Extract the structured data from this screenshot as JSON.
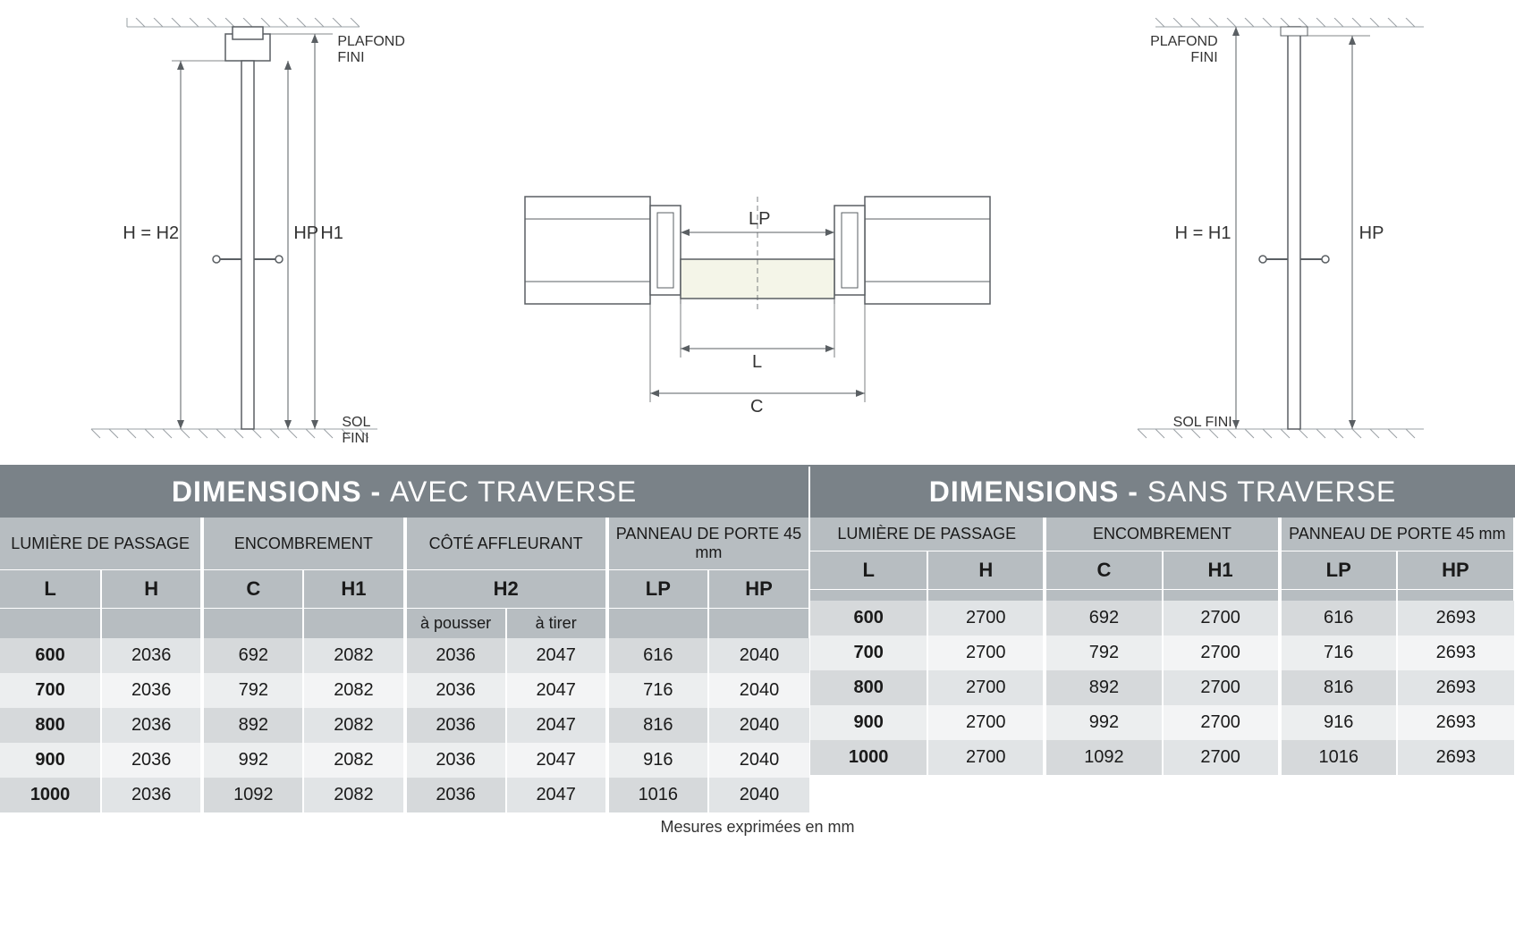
{
  "colors": {
    "header_bg": "#7a8288",
    "header_text": "#ffffff",
    "subheader_bg": "#b7bdc1",
    "row_odd": "#d6d9db",
    "row_even": "#eceeef",
    "row_odd_light": "#e1e4e6",
    "row_even_light": "#f3f4f5",
    "text": "#1a1a1a",
    "diagram_line": "#5a5f63",
    "diagram_fill": "#f4f5e8",
    "hatch": "#9aa0a4"
  },
  "diagrams": {
    "left": {
      "plafond": "PLAFOND FINI",
      "sol": "SOL FINI",
      "h_eq": "H = H2",
      "hp": "HP",
      "h1": "H1"
    },
    "center": {
      "lp": "LP",
      "l": "L",
      "c": "C"
    },
    "right": {
      "plafond": "PLAFOND FINI",
      "sol": "SOL FINI",
      "h_eq": "H = H1",
      "hp": "HP"
    }
  },
  "table_left": {
    "title_bold": "DIMENSIONS -",
    "title_light": "AVEC TRAVERSE",
    "groups": [
      {
        "label": "LUMIÈRE DE PASSAGE",
        "cols": [
          "L",
          "H"
        ]
      },
      {
        "label": "ENCOMBREMENT",
        "cols": [
          "C",
          "H1"
        ]
      },
      {
        "label": "CÔTÉ AFFLEURANT",
        "cols": [
          "H2"
        ],
        "sub": [
          "à pousser",
          "à tirer"
        ]
      },
      {
        "label": "PANNEAU DE PORTE 45 mm",
        "cols": [
          "LP",
          "HP"
        ]
      }
    ],
    "rows": [
      [
        600,
        2036,
        692,
        2082,
        2036,
        2047,
        616,
        2040
      ],
      [
        700,
        2036,
        792,
        2082,
        2036,
        2047,
        716,
        2040
      ],
      [
        800,
        2036,
        892,
        2082,
        2036,
        2047,
        816,
        2040
      ],
      [
        900,
        2036,
        992,
        2082,
        2036,
        2047,
        916,
        2040
      ],
      [
        1000,
        2036,
        1092,
        2082,
        2036,
        2047,
        1016,
        2040
      ]
    ]
  },
  "table_right": {
    "title_bold": "DIMENSIONS -",
    "title_light": "SANS TRAVERSE",
    "groups": [
      {
        "label": "LUMIÈRE DE PASSAGE",
        "cols": [
          "L",
          "H"
        ]
      },
      {
        "label": "ENCOMBREMENT",
        "cols": [
          "C",
          "H1"
        ]
      },
      {
        "label": "PANNEAU DE PORTE 45 mm",
        "cols": [
          "LP",
          "HP"
        ]
      }
    ],
    "rows": [
      [
        600,
        2700,
        692,
        2700,
        616,
        2693
      ],
      [
        700,
        2700,
        792,
        2700,
        716,
        2693
      ],
      [
        800,
        2700,
        892,
        2700,
        816,
        2693
      ],
      [
        900,
        2700,
        992,
        2700,
        916,
        2693
      ],
      [
        1000,
        2700,
        1092,
        2700,
        1016,
        2693
      ]
    ]
  },
  "footer": "Mesures exprimées en mm"
}
